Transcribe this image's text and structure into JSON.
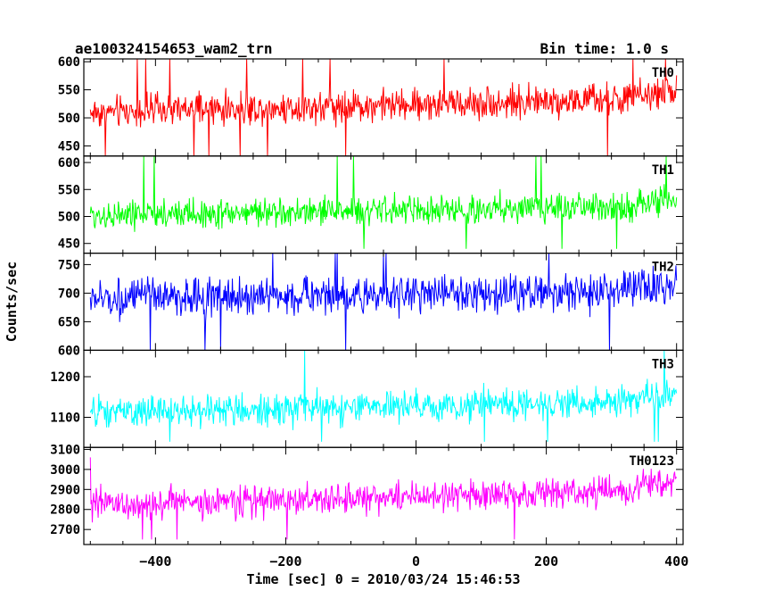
{
  "chart_data": {
    "type": "line",
    "title": "ae100324154653_wam2_trn",
    "bin_time_label": "Bin time: 1.0 s",
    "xlabel": "Time [sec] 0 = 2010/03/24 15:46:53",
    "ylabel": "Counts/sec",
    "xlim": [
      -510,
      410
    ],
    "x_ticks": [
      -400,
      -200,
      0,
      200,
      400
    ],
    "x_tick_labels": [
      "−400",
      "−200",
      "0",
      "200",
      "400"
    ],
    "x_range": [
      -500,
      400
    ],
    "bin_time_sec": 1.0,
    "grid": false,
    "panels": [
      {
        "name": "TH0",
        "color": "#ff0000",
        "ylim": [
          432,
          605
        ],
        "y_ticks": [
          450,
          500,
          550,
          600
        ],
        "y_tick_labels": [
          "450",
          "500",
          "550",
          "600"
        ],
        "trend_start": 510,
        "trend_end": 535,
        "noise_amplitude": 28,
        "data_min": 432,
        "data_max": 605
      },
      {
        "name": "TH1",
        "color": "#00ff00",
        "ylim": [
          432,
          612
        ],
        "y_ticks": [
          450,
          500,
          550,
          600
        ],
        "y_tick_labels": [
          "450",
          "500",
          "550",
          "600"
        ],
        "trend_start": 502,
        "trend_end": 520,
        "noise_amplitude": 26,
        "data_min": 440,
        "data_max": 612
      },
      {
        "name": "TH2",
        "color": "#0000ff",
        "ylim": [
          600,
          770
        ],
        "y_ticks": [
          600,
          650,
          700,
          750
        ],
        "y_tick_labels": [
          "600",
          "650",
          "700",
          "750"
        ],
        "trend_start": 690,
        "trend_end": 705,
        "noise_amplitude": 32,
        "data_min": 600,
        "data_max": 770
      },
      {
        "name": "TH3",
        "color": "#00ffff",
        "ylim": [
          1026,
          1265
        ],
        "y_ticks": [
          1100,
          1200
        ],
        "y_tick_labels": [
          "1100",
          "1200"
        ],
        "trend_start": 1110,
        "trend_end": 1140,
        "noise_amplitude": 38,
        "data_min": 1040,
        "data_max": 1265
      },
      {
        "name": "TH0123",
        "color": "#ff00ff",
        "ylim": [
          2625,
          3110
        ],
        "y_ticks": [
          2700,
          2800,
          2900,
          3000,
          3100
        ],
        "y_tick_labels": [
          "2700",
          "2800",
          "2900",
          "3000",
          "3100"
        ],
        "trend_start": 2820,
        "trend_end": 2900,
        "noise_amplitude": 75,
        "data_min": 2650,
        "data_max": 3060
      }
    ]
  }
}
